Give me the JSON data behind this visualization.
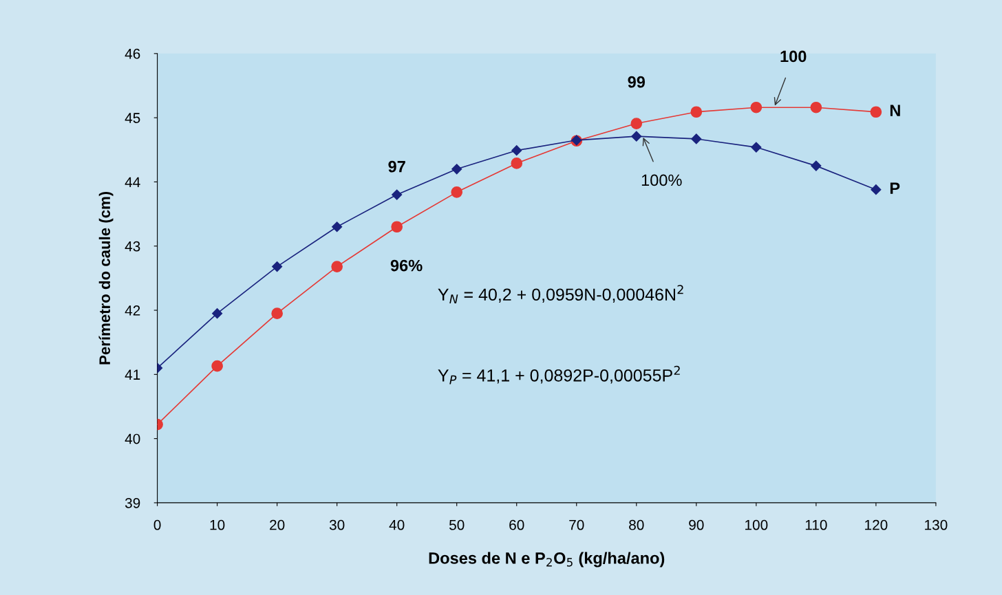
{
  "chart_data": {
    "type": "line",
    "xlabel": "Doses de N e P$_{2}$O$_{5}$ (kg/ha/ano)",
    "ylabel": "Perímetro do caule (cm)",
    "x": [
      0,
      10,
      20,
      30,
      40,
      50,
      60,
      70,
      80,
      90,
      100,
      110,
      120
    ],
    "series": [
      {
        "name": "P",
        "color": "#1a237e",
        "marker": "diamond",
        "values": [
          41.1,
          41.95,
          42.68,
          43.3,
          43.8,
          44.2,
          44.49,
          44.65,
          44.71,
          44.67,
          44.54,
          44.25,
          43.88
        ]
      },
      {
        "name": "N",
        "color": "#e53935",
        "marker": "circle",
        "values": [
          40.22,
          41.13,
          41.95,
          42.68,
          43.3,
          43.84,
          44.29,
          44.64,
          44.91,
          45.09,
          45.16,
          45.16,
          45.09
        ]
      }
    ],
    "xlim": [
      0,
      130
    ],
    "xticks": [
      0,
      10,
      20,
      30,
      40,
      50,
      60,
      70,
      80,
      90,
      100,
      110,
      120,
      130
    ],
    "ylim": [
      39,
      46
    ],
    "yticks": [
      39,
      40,
      41,
      42,
      43,
      44,
      45,
      46
    ],
    "grid": false,
    "legend": false,
    "annotations": [
      {
        "text": "97",
        "x": 40,
        "y": 43.8
      },
      {
        "text": "96%",
        "x": 40,
        "y": 43.3
      },
      {
        "text": "99",
        "x": 80,
        "y": 44.91
      },
      {
        "text": "100%",
        "x": 81,
        "y": 44.72
      },
      {
        "text": "100",
        "x": 103,
        "y": 45.16
      },
      "Y$_{N}$ = 40,2 + 0,0959N-0,00046N$^{2}$",
      "Y$_{P}$ = 41,1 + 0,0892P-0,00055P$^{2}$"
    ]
  }
}
